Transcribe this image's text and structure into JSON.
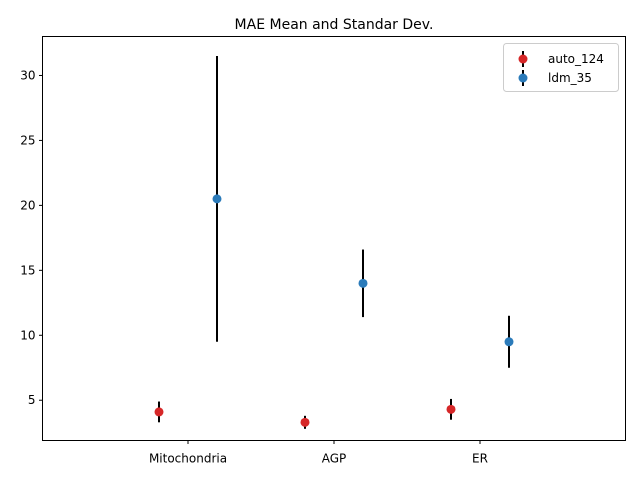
{
  "chart_data": {
    "type": "scatter",
    "title": "MAE Mean and Standar Dev.",
    "xlabel": "",
    "ylabel": "",
    "categories": [
      "Mitochondria",
      "AGP",
      "ER"
    ],
    "yticks": [
      5,
      10,
      15,
      20,
      25,
      30
    ],
    "ylim": [
      1.9,
      33.0
    ],
    "grid": false,
    "legend_position": "top-right",
    "series": [
      {
        "name": "auto_124",
        "color": "#d62728",
        "means": [
          4.1,
          3.3,
          4.3
        ],
        "stds": [
          0.8,
          0.5,
          0.8
        ]
      },
      {
        "name": "ldm_35",
        "color": "#2b7bba",
        "means": [
          20.5,
          14.0,
          9.5
        ],
        "stds": [
          11.0,
          2.6,
          2.0
        ]
      }
    ],
    "errorbar_color": "#000000"
  }
}
